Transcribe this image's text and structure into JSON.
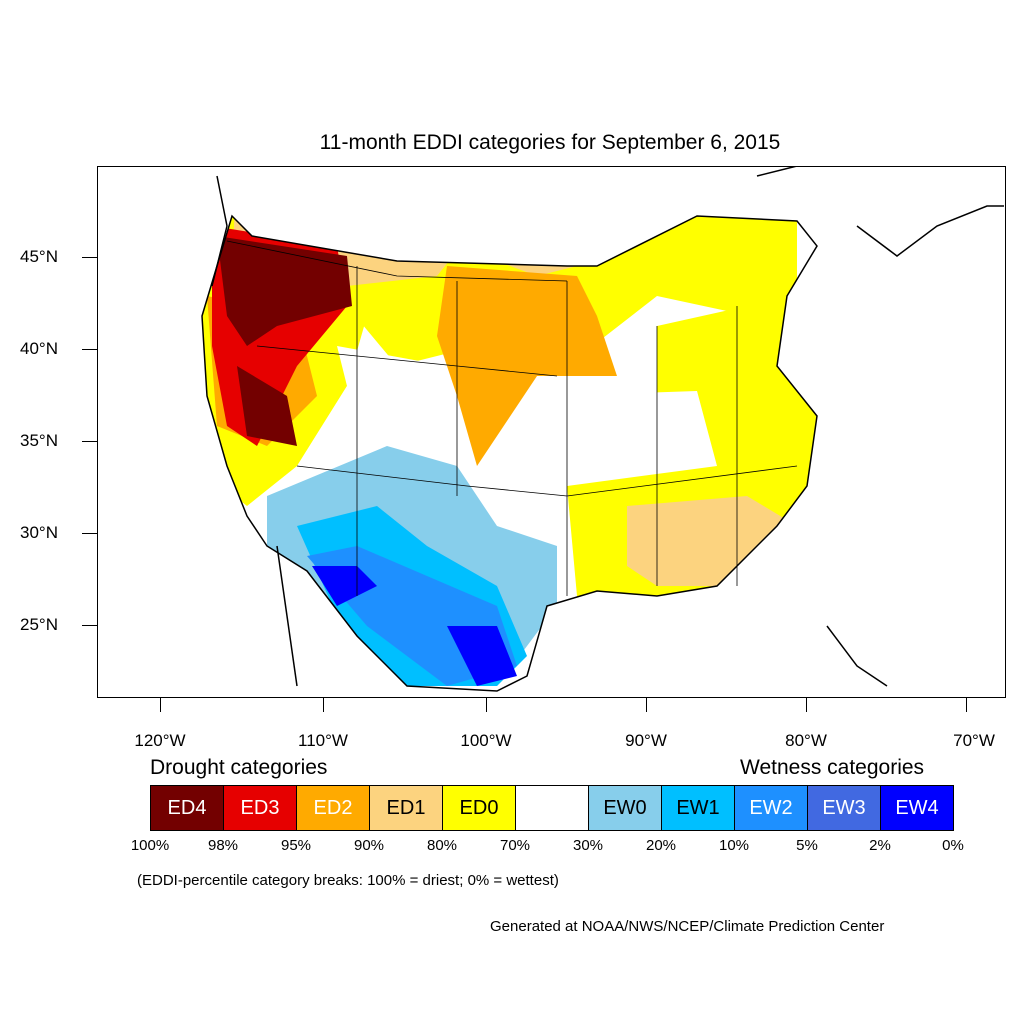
{
  "title": "11-month EDDI categories for September 6, 2015",
  "lat_labels": [
    "45°N",
    "40°N",
    "35°N",
    "30°N",
    "25°N"
  ],
  "lon_labels": [
    "120°W",
    "110°W",
    "100°W",
    "90°W",
    "80°W",
    "70°W"
  ],
  "legend": {
    "drought_heading": "Drought categories",
    "wetness_heading": "Wetness categories",
    "categories": [
      {
        "label": "ED4",
        "color": "#730000",
        "text_color": "#ffffff"
      },
      {
        "label": "ED3",
        "color": "#e60000",
        "text_color": "#ffffff"
      },
      {
        "label": "ED2",
        "color": "#ffaa00",
        "text_color": "#ffffff"
      },
      {
        "label": "ED1",
        "color": "#fcd37f",
        "text_color": "#000000"
      },
      {
        "label": "ED0",
        "color": "#ffff00",
        "text_color": "#000000"
      },
      {
        "label": "",
        "color": "#ffffff",
        "text_color": "#000000"
      },
      {
        "label": "EW0",
        "color": "#87ceeb",
        "text_color": "#000000"
      },
      {
        "label": "EW1",
        "color": "#00bfff",
        "text_color": "#000000"
      },
      {
        "label": "EW2",
        "color": "#1e90ff",
        "text_color": "#ffffff"
      },
      {
        "label": "EW3",
        "color": "#4169e1",
        "text_color": "#ffffff"
      },
      {
        "label": "EW4",
        "color": "#0000ff",
        "text_color": "#ffffff"
      }
    ],
    "breaks": [
      "100%",
      "98%",
      "95%",
      "90%",
      "80%",
      "70%",
      "30%",
      "20%",
      "10%",
      "5%",
      "2%",
      "0%"
    ]
  },
  "note": "(EDDI-percentile category breaks: 100% = driest; 0% = wettest)",
  "credit": "Generated at NOAA/NWS/NCEP/Climate Prediction Center"
}
